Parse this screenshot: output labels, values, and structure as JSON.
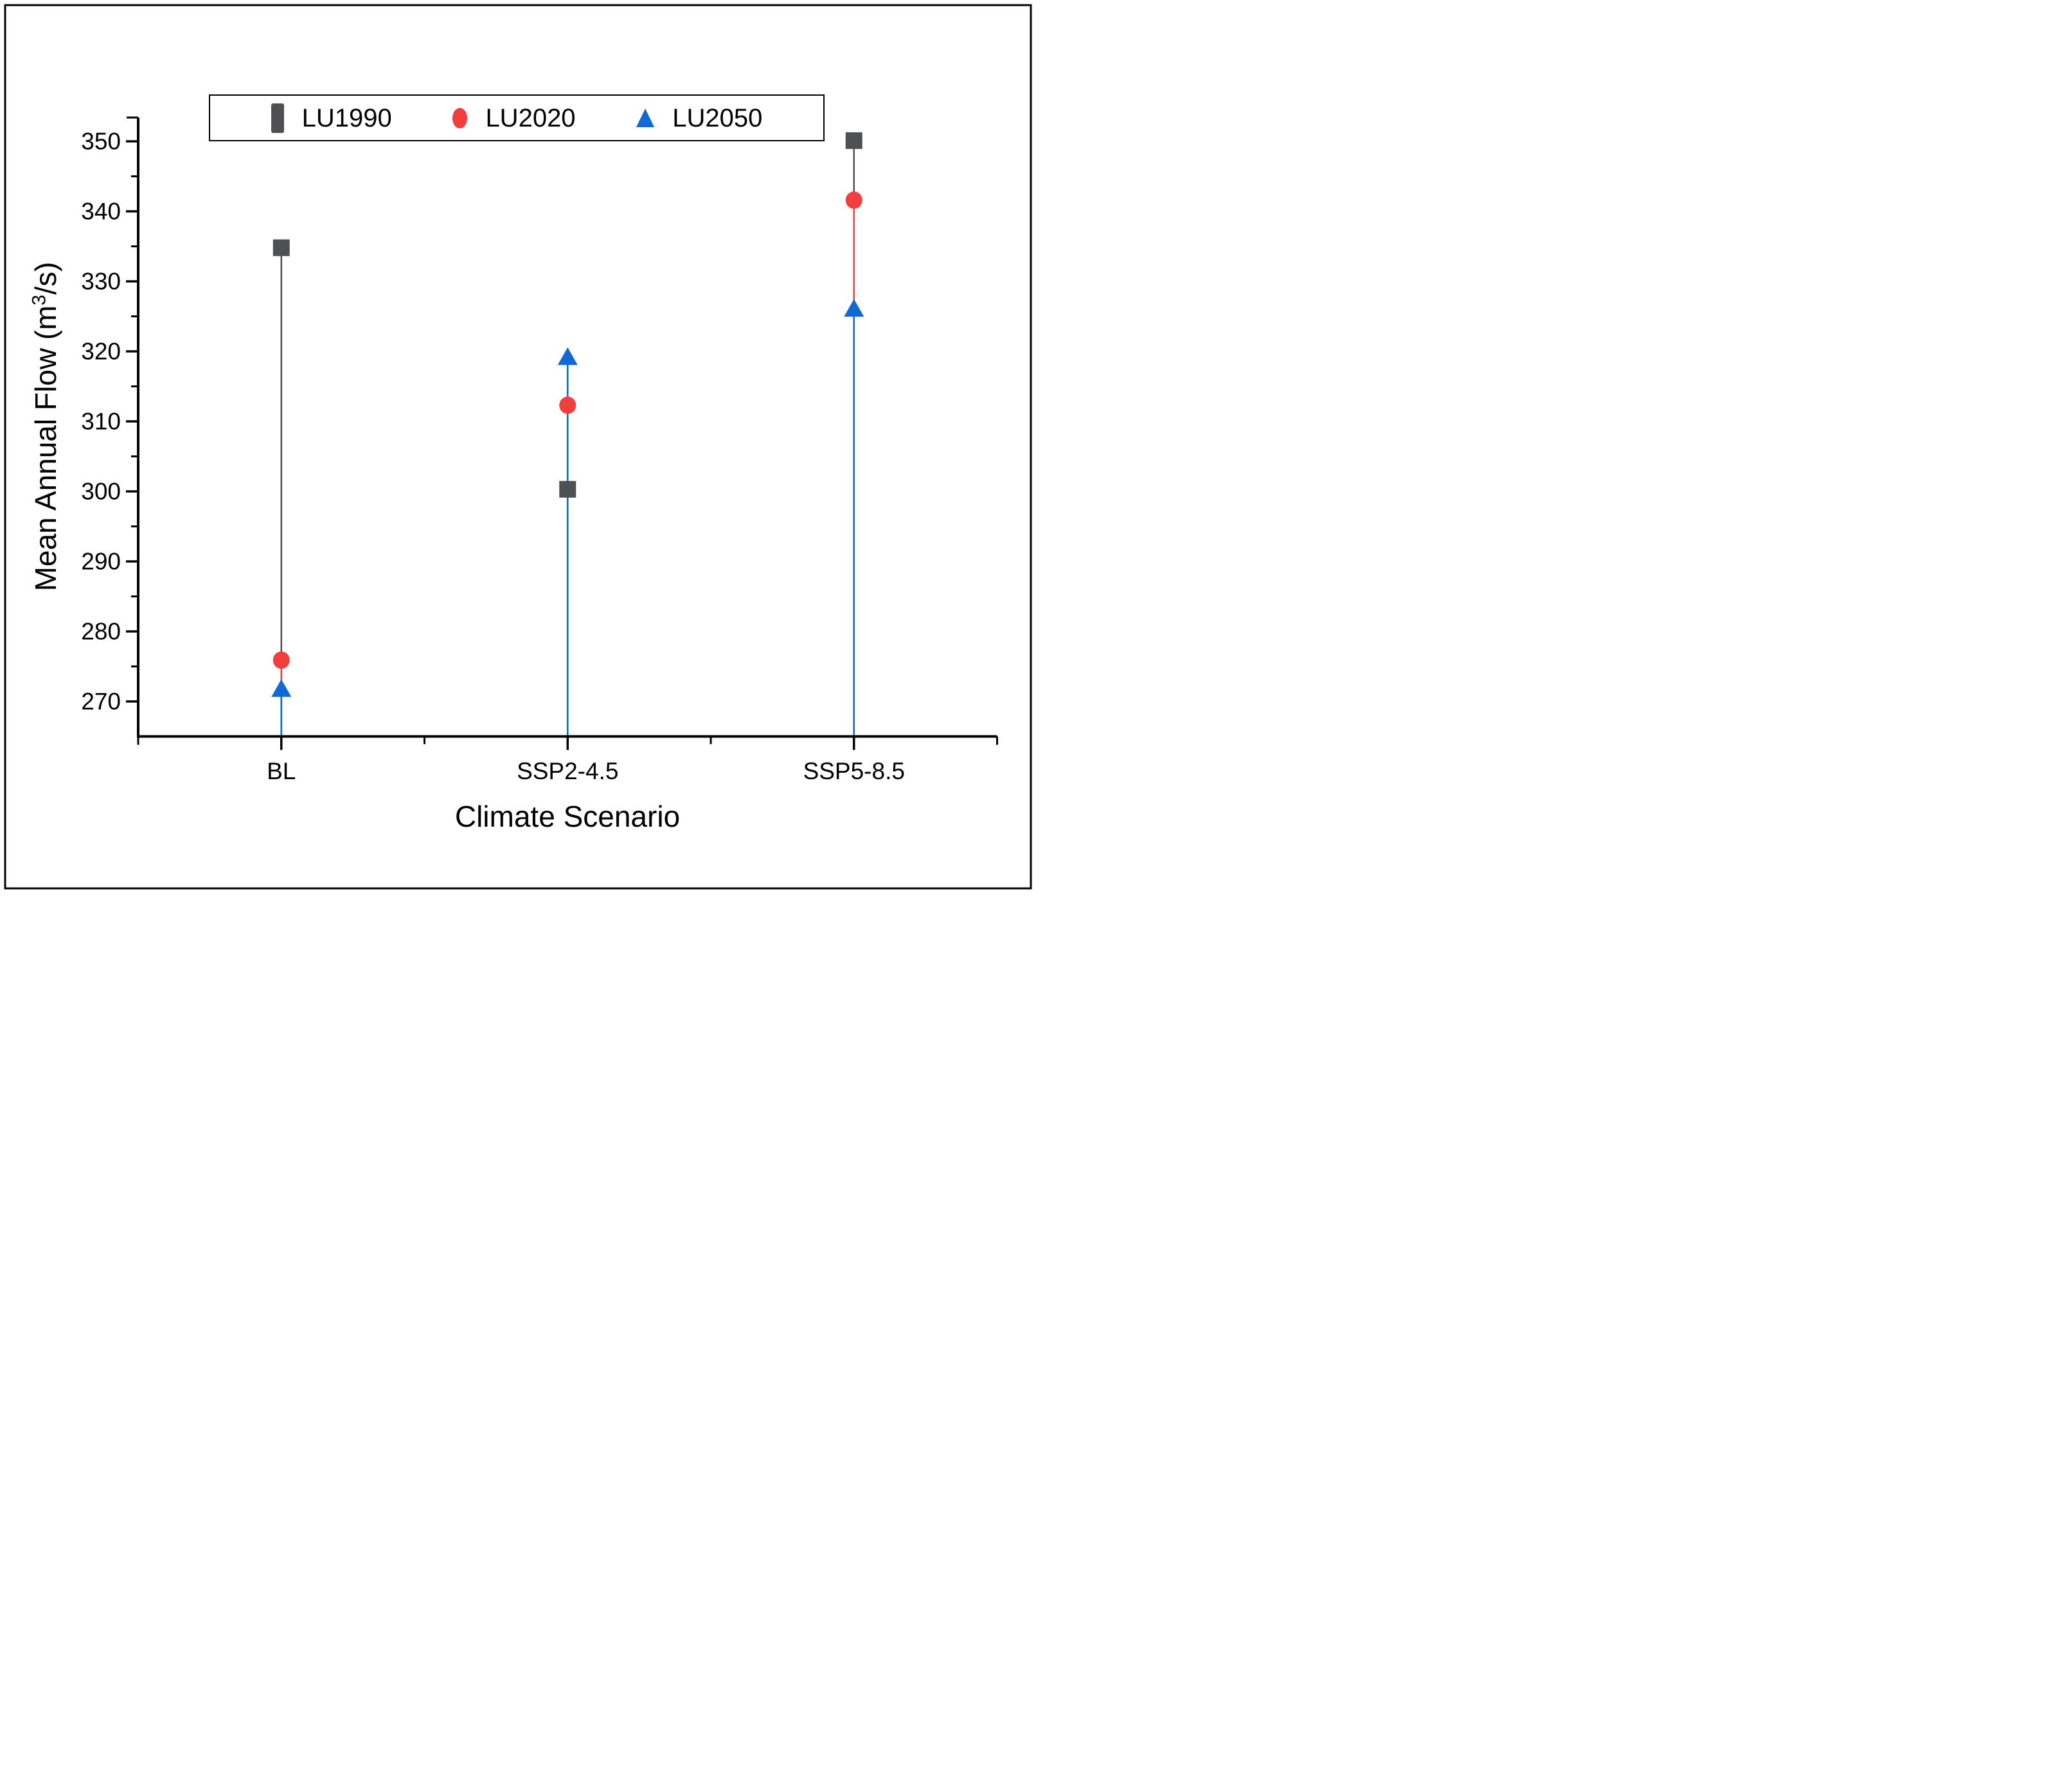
{
  "figure": {
    "background_color": "#ffffff",
    "border_color": "#000000"
  },
  "chart_data": {
    "type": "scatter",
    "title": "",
    "xlabel": "Climate Scenario",
    "ylabel": {
      "full": "Mean Annual Flow (m³/s)",
      "pre": "Mean Annual Flow (m",
      "sup": "3",
      "post": "/s)"
    },
    "categories": [
      "BL",
      "SSP2-4.5",
      "SSP5-8.5"
    ],
    "series": [
      {
        "name": "LU1990",
        "marker": "square",
        "color": "#4F5052",
        "line_color": "#3C3C3C",
        "values": [
          334.8,
          300.3,
          350.1
        ]
      },
      {
        "name": "LU2020",
        "marker": "circle",
        "color": "#F43E3E",
        "line_color": "#F43E3E",
        "values": [
          275.9,
          312.3,
          341.6
        ]
      },
      {
        "name": "LU2050",
        "marker": "triangle",
        "color": "#1169D5",
        "line_color": "#1169D5",
        "values": [
          271.8,
          319.2,
          326.1
        ]
      }
    ],
    "drop_lines": true,
    "ylim": [
      265,
      353.4
    ],
    "y_major_ticks": [
      270,
      280,
      290,
      300,
      310,
      320,
      330,
      340,
      350
    ],
    "y_minor_ticks": [
      275,
      285,
      295,
      305,
      315,
      325,
      335,
      345
    ],
    "grid": false,
    "legend": {
      "position": "top",
      "entries": [
        "LU1990",
        "LU2020",
        "LU2050"
      ]
    }
  }
}
